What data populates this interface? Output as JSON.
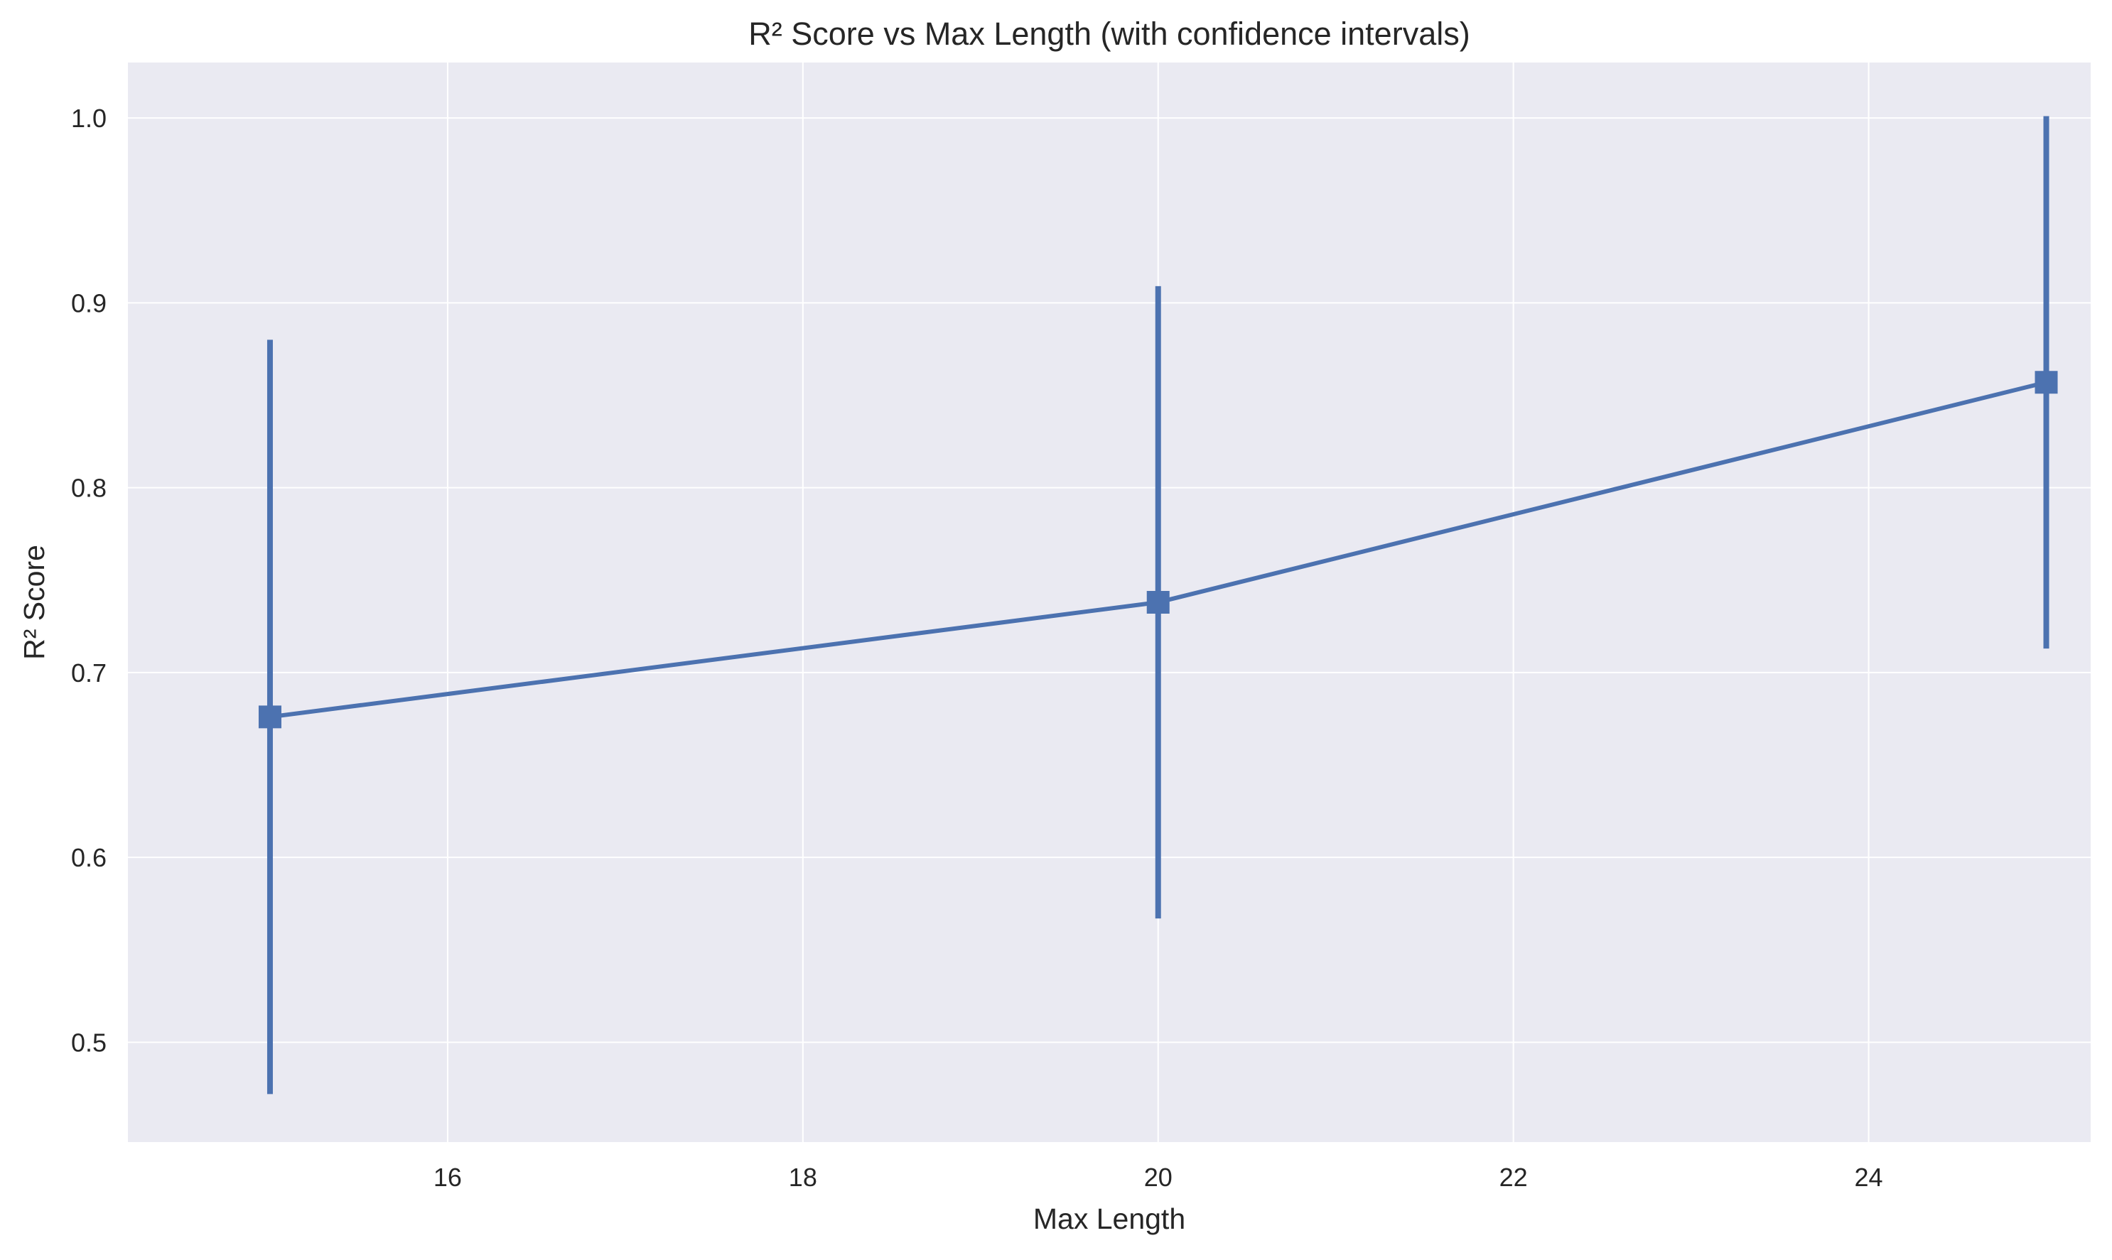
{
  "chart_data": {
    "type": "line",
    "title": "R² Score vs Max Length (with confidence intervals)",
    "xlabel": "Max Length",
    "ylabel": "R² Score",
    "xlim": [
      14.2,
      25.25
    ],
    "ylim": [
      0.446,
      1.03
    ],
    "x_ticks": [
      16,
      18,
      20,
      22,
      24
    ],
    "y_ticks": [
      0.5,
      0.6,
      0.7,
      0.8,
      0.9,
      1.0
    ],
    "x_tick_labels": [
      "16",
      "18",
      "20",
      "22",
      "24"
    ],
    "y_tick_labels": [
      "0.5",
      "0.6",
      "0.7",
      "0.8",
      "0.9",
      "1.0"
    ],
    "grid": true,
    "legend": "none",
    "series": [
      {
        "name": "R² Score",
        "marker": "square",
        "x": [
          15,
          20,
          25
        ],
        "y": [
          0.676,
          0.738,
          0.857
        ],
        "ci_lower": [
          0.472,
          0.567,
          0.713
        ],
        "ci_upper": [
          0.88,
          0.909,
          1.001
        ]
      }
    ],
    "colors": {
      "line": "#4c72b0",
      "plot_background": "#eaeaf2",
      "grid": "#ffffff",
      "text": "#262626"
    }
  }
}
